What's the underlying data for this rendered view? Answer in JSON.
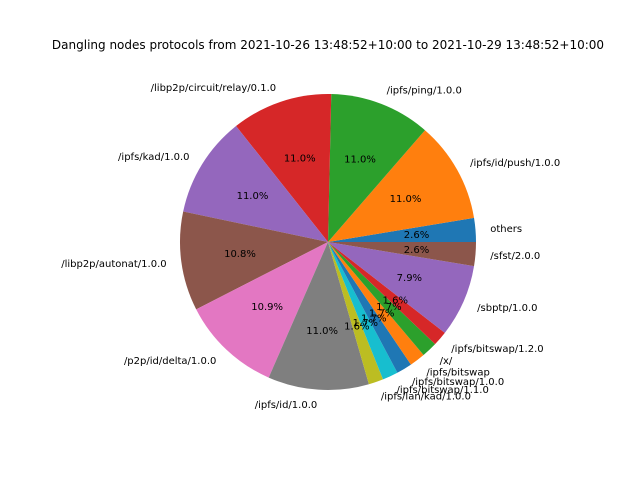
{
  "chart_data": {
    "type": "pie",
    "title": "Dangling nodes protocols from 2021-10-26 13:48:52+10:00 to 2021-10-29 13:48:52+10:00",
    "start_angle_deg": 0,
    "direction": "counterclockwise",
    "slices": [
      {
        "label": "others",
        "value": 2.6,
        "pct_label": "2.6%",
        "color": "#1f77b4"
      },
      {
        "label": "/ipfs/id/push/1.0.0",
        "value": 11.0,
        "pct_label": "11.0%",
        "color": "#ff7f0e"
      },
      {
        "label": "/ipfs/ping/1.0.0",
        "value": 11.0,
        "pct_label": "11.0%",
        "color": "#2ca02c"
      },
      {
        "label": "/libp2p/circuit/relay/0.1.0",
        "value": 11.0,
        "pct_label": "11.0%",
        "color": "#d62728"
      },
      {
        "label": "/ipfs/kad/1.0.0",
        "value": 11.0,
        "pct_label": "11.0%",
        "color": "#9467bd"
      },
      {
        "label": "/libp2p/autonat/1.0.0",
        "value": 10.8,
        "pct_label": "10.8%",
        "color": "#8c564b"
      },
      {
        "label": "/p2p/id/delta/1.0.0",
        "value": 10.9,
        "pct_label": "10.9%",
        "color": "#e377c2"
      },
      {
        "label": "/ipfs/id/1.0.0",
        "value": 11.0,
        "pct_label": "11.0%",
        "color": "#7f7f7f"
      },
      {
        "label": "/ipfs/lan/kad/1.0.0",
        "value": 1.6,
        "pct_label": "1.6%",
        "color": "#bcbd22"
      },
      {
        "label": "/ipfs/bitswap/1.1.0",
        "value": 1.7,
        "pct_label": "1.7%",
        "color": "#17becf"
      },
      {
        "label": "/ipfs/bitswap/1.0.0",
        "value": 1.7,
        "pct_label": "1.7%",
        "color": "#1f77b4"
      },
      {
        "label": "/ipfs/bitswap",
        "value": 1.7,
        "pct_label": "1.7%",
        "color": "#ff7f0e"
      },
      {
        "label": "/x/",
        "value": 1.7,
        "pct_label": "1.7%",
        "color": "#2ca02c"
      },
      {
        "label": "/ipfs/bitswap/1.2.0",
        "value": 1.6,
        "pct_label": "1.6%",
        "color": "#d62728"
      },
      {
        "label": "/sbptp/1.0.0",
        "value": 7.9,
        "pct_label": "7.9%",
        "color": "#9467bd"
      },
      {
        "label": "/sfst/2.0.0",
        "value": 2.6,
        "pct_label": "2.6%",
        "color": "#8c564b"
      }
    ]
  }
}
